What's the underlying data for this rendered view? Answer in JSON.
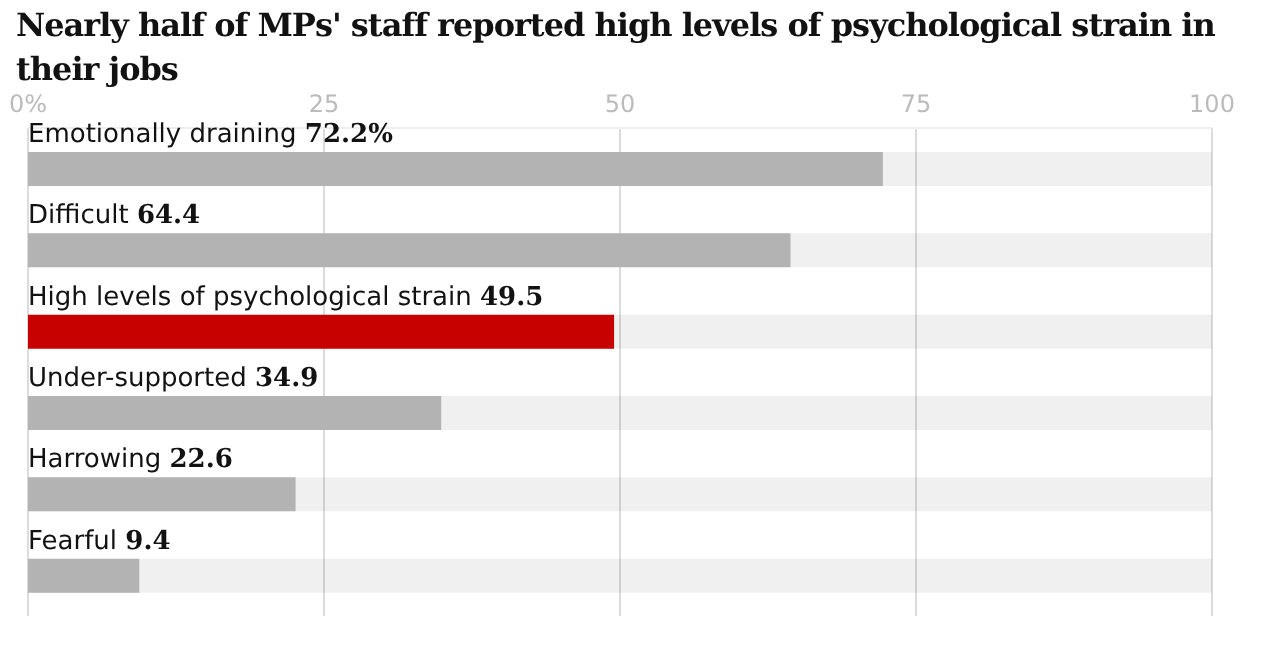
{
  "chart_data": {
    "type": "bar",
    "orientation": "horizontal",
    "title": "Nearly half of MPs' staff reported high levels of psychological strain in their jobs",
    "categories": [
      "Emotionally draining",
      "Difficult",
      "High levels of psychological strain",
      "Under-supported",
      "Harrowing",
      "Fearful"
    ],
    "values": [
      72.2,
      64.4,
      49.5,
      34.9,
      22.6,
      9.4
    ],
    "value_labels": [
      "72.2%",
      "64.4",
      "49.5",
      "34.9",
      "22.6",
      "9.4"
    ],
    "colors": [
      "#b3b3b3",
      "#b3b3b3",
      "#c70000",
      "#b3b3b3",
      "#b3b3b3",
      "#b3b3b3"
    ],
    "xlim": [
      0,
      100
    ],
    "xticks": [
      {
        "value": 0,
        "label": "0%"
      },
      25,
      50,
      75,
      100
    ],
    "grid": "x",
    "legend": false
  }
}
